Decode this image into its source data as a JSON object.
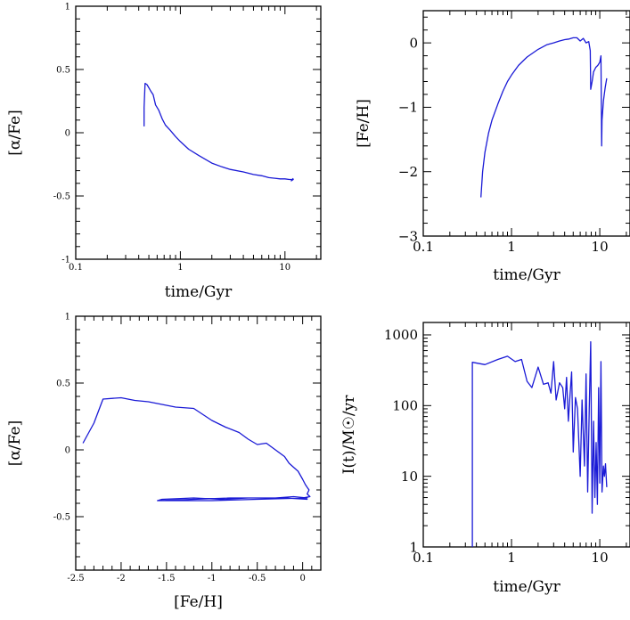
{
  "chart_data": [
    {
      "type": "line",
      "xscale": "log",
      "xlim": [
        0.1,
        22
      ],
      "ylim": [
        -1,
        1
      ],
      "xticks": [
        {
          "v": 0.1,
          "label": "0.1"
        },
        {
          "v": 1,
          "label": "1"
        },
        {
          "v": 10,
          "label": "10"
        }
      ],
      "yticks": [
        {
          "v": -1,
          "label": "-1"
        },
        {
          "v": -0.5,
          "label": "-0.5"
        },
        {
          "v": 0,
          "label": "0"
        },
        {
          "v": 0.5,
          "label": "0.5"
        },
        {
          "v": 1,
          "label": "1"
        }
      ],
      "xlabel": "time/Gyr",
      "ylabel": "[α/Fe]",
      "series": [
        {
          "x": [
            0.45,
            0.45,
            0.46,
            0.48,
            0.52,
            0.55,
            0.58,
            0.62,
            0.67,
            0.72,
            0.8,
            0.9,
            1.0,
            1.2,
            1.5,
            2.0,
            2.5,
            3.0,
            4.0,
            5.0,
            6.0,
            7.0,
            8.0,
            9.0,
            10.0,
            11.0,
            12.0,
            11.5,
            12.0
          ],
          "y": [
            0.05,
            0.2,
            0.39,
            0.38,
            0.33,
            0.3,
            0.22,
            0.18,
            0.11,
            0.06,
            0.02,
            -0.03,
            -0.07,
            -0.13,
            -0.18,
            -0.24,
            -0.27,
            -0.29,
            -0.31,
            -0.33,
            -0.34,
            -0.355,
            -0.36,
            -0.365,
            -0.365,
            -0.37,
            -0.37,
            -0.38,
            -0.36
          ]
        }
      ]
    },
    {
      "type": "line",
      "xscale": "log",
      "xlim": [
        0.1,
        22
      ],
      "ylim": [
        -3,
        0.5
      ],
      "xticks": [
        {
          "v": 0.1,
          "label": "0.1"
        },
        {
          "v": 1,
          "label": "1"
        },
        {
          "v": 10,
          "label": "10"
        }
      ],
      "yticks": [
        {
          "v": -3,
          "label": "−3"
        },
        {
          "v": -2,
          "label": "−2"
        },
        {
          "v": -1,
          "label": "−1"
        },
        {
          "v": 0,
          "label": "0"
        }
      ],
      "xlabel": "time/Gyr",
      "ylabel": "[Fe/H]",
      "series": [
        {
          "x": [
            0.45,
            0.47,
            0.5,
            0.55,
            0.6,
            0.7,
            0.8,
            0.9,
            1.0,
            1.2,
            1.5,
            2.0,
            2.5,
            3.0,
            3.5,
            4.0,
            4.5,
            5.0,
            5.5,
            6.0,
            6.5,
            7.0,
            7.5,
            7.8,
            7.9,
            8.2,
            8.5,
            9.0,
            9.5,
            10.0,
            10.3,
            10.5,
            10.6,
            10.8,
            11.0,
            11.5,
            12.0
          ],
          "y": [
            -2.4,
            -2.0,
            -1.7,
            -1.4,
            -1.2,
            -0.95,
            -0.75,
            -0.6,
            -0.5,
            -0.35,
            -0.22,
            -0.1,
            -0.03,
            0.0,
            0.03,
            0.05,
            0.06,
            0.08,
            0.08,
            0.03,
            0.07,
            0.0,
            0.02,
            -0.12,
            -0.72,
            -0.6,
            -0.45,
            -0.38,
            -0.35,
            -0.3,
            -0.2,
            -1.6,
            -1.2,
            -1.05,
            -0.9,
            -0.7,
            -0.55
          ]
        }
      ]
    },
    {
      "type": "line",
      "xscale": "linear",
      "xlim": [
        -2.5,
        0.2
      ],
      "ylim": [
        -0.9,
        1
      ],
      "xticks": [
        {
          "v": -2.5,
          "label": "-2.5"
        },
        {
          "v": -2,
          "label": "-2"
        },
        {
          "v": -1.5,
          "label": "-1.5"
        },
        {
          "v": -1,
          "label": "-1"
        },
        {
          "v": -0.5,
          "label": "-0.5"
        },
        {
          "v": 0,
          "label": "0"
        }
      ],
      "yticks": [
        {
          "v": -0.5,
          "label": "-0.5"
        },
        {
          "v": 0,
          "label": "0"
        },
        {
          "v": 0.5,
          "label": "0.5"
        },
        {
          "v": 1,
          "label": "1"
        }
      ],
      "xlabel": "[Fe/H]",
      "ylabel": "[α/Fe]",
      "series": [
        {
          "x": [
            -2.42,
            -2.3,
            -2.2,
            -2.0,
            -1.85,
            -1.7,
            -1.55,
            -1.4,
            -1.2,
            -1.0,
            -0.85,
            -0.7,
            -0.6,
            -0.5,
            -0.4,
            -0.3,
            -0.2,
            -0.15,
            -0.1,
            -0.05,
            0.0,
            0.03,
            0.05,
            0.07,
            0.05,
            0.08,
            0.0,
            0.05,
            -0.2,
            -0.4,
            -0.8,
            -1.2,
            -1.6,
            -1.55,
            -1.2,
            -0.9,
            -0.6,
            -0.3,
            -0.1,
            0.05,
            -0.5,
            -1.0,
            -1.6
          ],
          "y": [
            0.05,
            0.2,
            0.38,
            0.39,
            0.37,
            0.36,
            0.34,
            0.32,
            0.31,
            0.22,
            0.17,
            0.13,
            0.08,
            0.04,
            0.05,
            0.0,
            -0.05,
            -0.1,
            -0.13,
            -0.16,
            -0.22,
            -0.26,
            -0.28,
            -0.3,
            -0.33,
            -0.35,
            -0.36,
            -0.37,
            -0.36,
            -0.36,
            -0.36,
            -0.37,
            -0.38,
            -0.37,
            -0.36,
            -0.37,
            -0.36,
            -0.36,
            -0.35,
            -0.36,
            -0.37,
            -0.38,
            -0.38
          ]
        }
      ]
    },
    {
      "type": "line",
      "xscale": "log",
      "yscale": "log",
      "xlim": [
        0.1,
        22
      ],
      "ylim": [
        1,
        1500
      ],
      "xticks": [
        {
          "v": 0.1,
          "label": "0.1"
        },
        {
          "v": 1,
          "label": "1"
        },
        {
          "v": 10,
          "label": "10"
        }
      ],
      "yticks": [
        {
          "v": 1,
          "label": "1"
        },
        {
          "v": 10,
          "label": "10"
        },
        {
          "v": 100,
          "label": "100"
        },
        {
          "v": 1000,
          "label": "1000"
        }
      ],
      "xlabel": "time/Gyr",
      "ylabel": "I(t)/M☉/yr",
      "series": [
        {
          "x": [
            0.36,
            0.36,
            0.5,
            0.7,
            0.9,
            1.1,
            1.3,
            1.5,
            1.7,
            2.0,
            2.3,
            2.6,
            2.8,
            3.0,
            3.2,
            3.5,
            3.8,
            4.0,
            4.2,
            4.4,
            4.6,
            4.8,
            5.0,
            5.3,
            5.6,
            6.0,
            6.3,
            6.7,
            7.0,
            7.3,
            7.6,
            7.9,
            8.2,
            8.5,
            8.8,
            9.1,
            9.4,
            9.7,
            10.0,
            10.3,
            10.6,
            11.0,
            11.3,
            11.6,
            12.0
          ],
          "y": [
            1,
            410,
            380,
            450,
            500,
            420,
            450,
            220,
            180,
            350,
            200,
            210,
            150,
            420,
            120,
            210,
            180,
            90,
            250,
            60,
            140,
            300,
            22,
            130,
            90,
            10,
            120,
            14,
            280,
            6,
            95,
            800,
            3,
            60,
            5,
            30,
            4,
            180,
            8,
            420,
            6,
            14,
            10,
            15,
            7
          ]
        }
      ]
    }
  ]
}
